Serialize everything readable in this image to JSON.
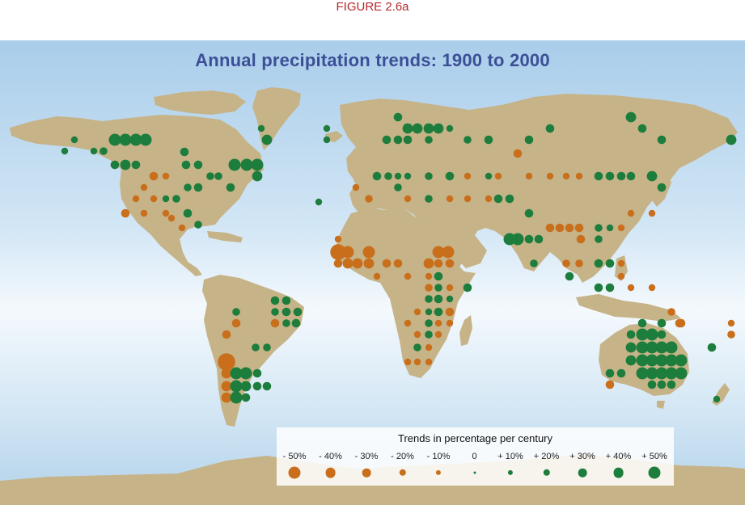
{
  "figure_label": "FIGURE 2.6a",
  "title": "Annual precipitation trends: 1900 to 2000",
  "colors": {
    "decrease": "#c96f1c",
    "increase": "#1d7d3c",
    "land": "#c6b388",
    "ocean_top": "#a9cdea",
    "ocean_mid": "#f4f9fd",
    "title": "#3c4f96",
    "figure_label": "#b5272d"
  },
  "legend": {
    "title": "Trends in percentage per century",
    "items": [
      {
        "label": "- 50%",
        "value": -50
      },
      {
        "label": "- 40%",
        "value": -40
      },
      {
        "label": "- 30%",
        "value": -30
      },
      {
        "label": "- 20%",
        "value": -20
      },
      {
        "label": "- 10%",
        "value": -10
      },
      {
        "label": "0",
        "value": 0
      },
      {
        "label": "+ 10%",
        "value": 10
      },
      {
        "label": "+ 20%",
        "value": 20
      },
      {
        "label": "+ 30%",
        "value": 30
      },
      {
        "label": "+ 40%",
        "value": 40
      },
      {
        "label": "+ 50%",
        "value": 50
      }
    ]
  }
}
